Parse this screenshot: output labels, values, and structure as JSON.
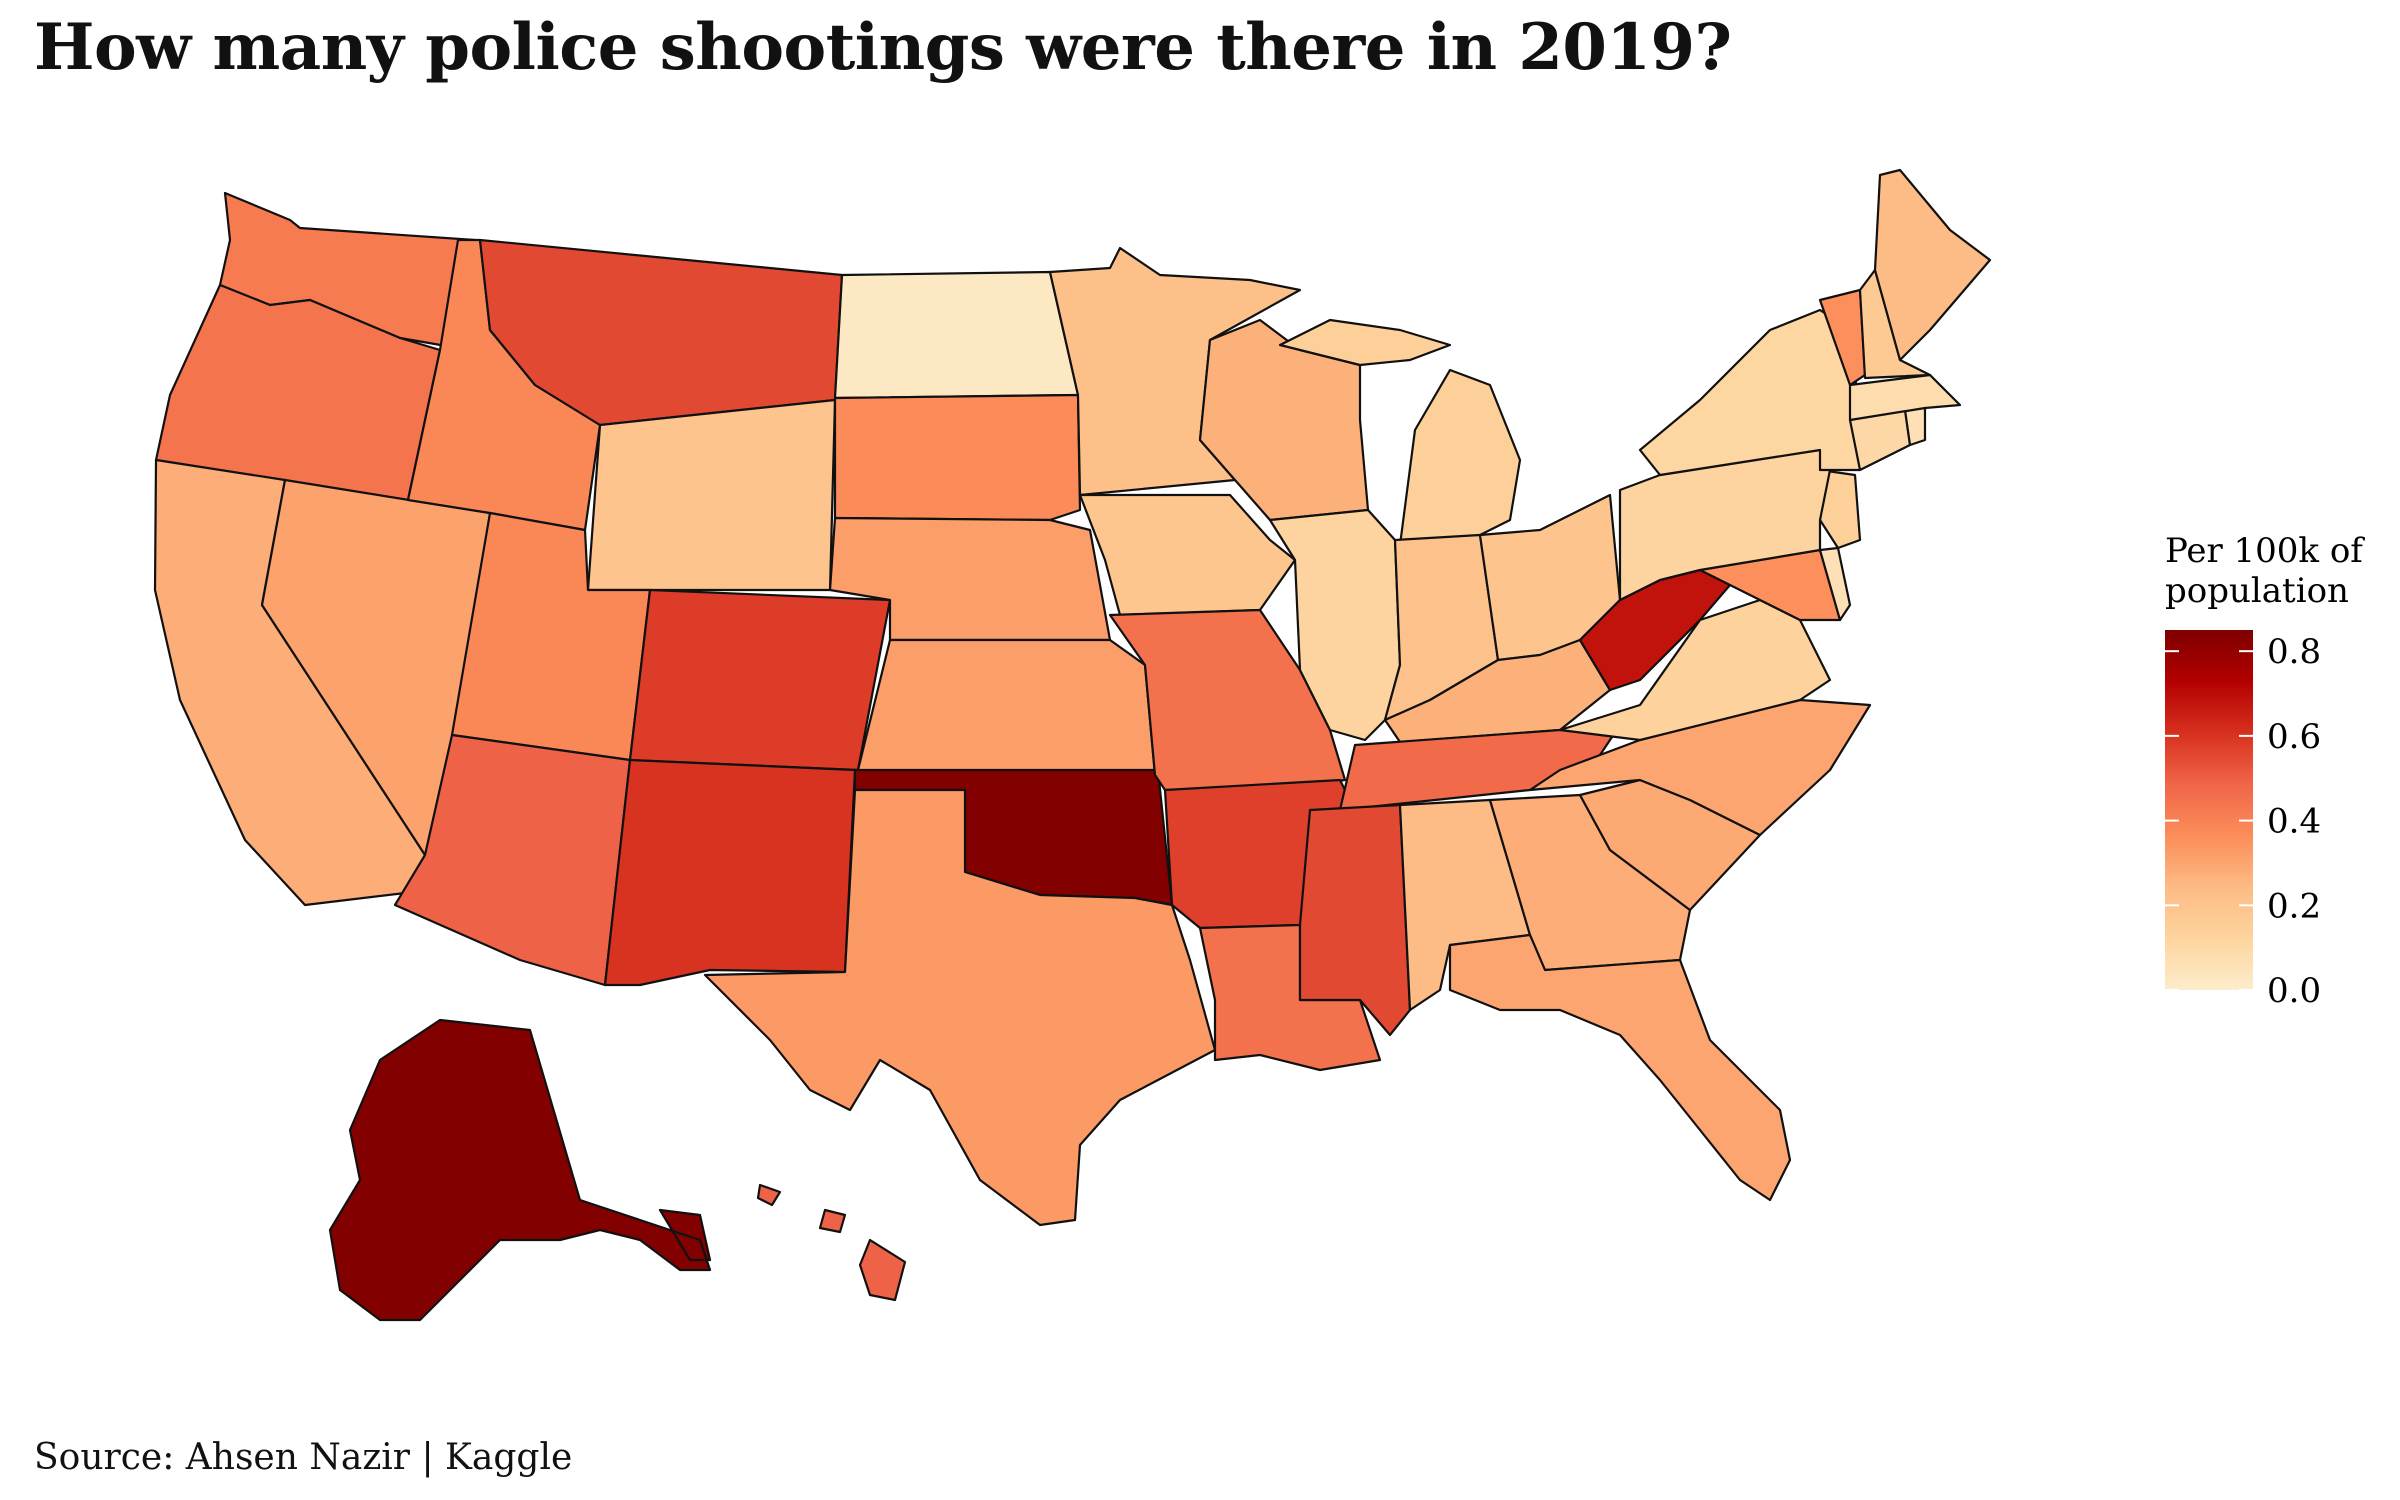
{
  "title": "How many police shootings were there in 2019?",
  "source": "Source: Ahsen Nazir | Kaggle",
  "legend": {
    "title_lines": [
      "Per 100k of",
      "population"
    ],
    "ticks": [
      "0.0",
      "0.2",
      "0.4",
      "0.6",
      "0.8"
    ],
    "min": 0.0,
    "max": 0.85,
    "colors": [
      "#fdeccb",
      "#fdd49e",
      "#fdbb84",
      "#fc8d59",
      "#ef6548",
      "#d7301f",
      "#b30000",
      "#7f0000"
    ]
  },
  "chart_data": {
    "type": "choropleth",
    "title": "How many police shootings were there in 2019?",
    "legend_title": "Per 100k of population",
    "scale_range": [
      0.0,
      0.85
    ],
    "values": {
      "WA": 0.42,
      "OR": 0.44,
      "CA": 0.28,
      "NV": 0.31,
      "ID": 0.38,
      "MT": 0.55,
      "WY": 0.2,
      "UT": 0.38,
      "AZ": 0.49,
      "CO": 0.58,
      "NM": 0.6,
      "ND": 0.02,
      "SD": 0.37,
      "NE": 0.32,
      "KS": 0.32,
      "OK": 0.84,
      "TX": 0.33,
      "MN": 0.22,
      "IA": 0.19,
      "MO": 0.45,
      "AR": 0.57,
      "LA": 0.45,
      "WI": 0.27,
      "IL": 0.12,
      "MI": 0.14,
      "IN": 0.21,
      "OH": 0.2,
      "KY": 0.27,
      "TN": 0.47,
      "MS": 0.55,
      "AL": 0.24,
      "GA": 0.28,
      "FL": 0.3,
      "SC": 0.29,
      "NC": 0.3,
      "VA": 0.13,
      "WV": 0.68,
      "MD": 0.36,
      "DE": 0.06,
      "NJ": 0.14,
      "PA": 0.12,
      "NY": 0.11,
      "CT": 0.1,
      "RI": 0.06,
      "MA": 0.08,
      "VT": 0.36,
      "NH": 0.17,
      "ME": 0.24,
      "AK": 0.84,
      "HI": 0.49
    }
  }
}
